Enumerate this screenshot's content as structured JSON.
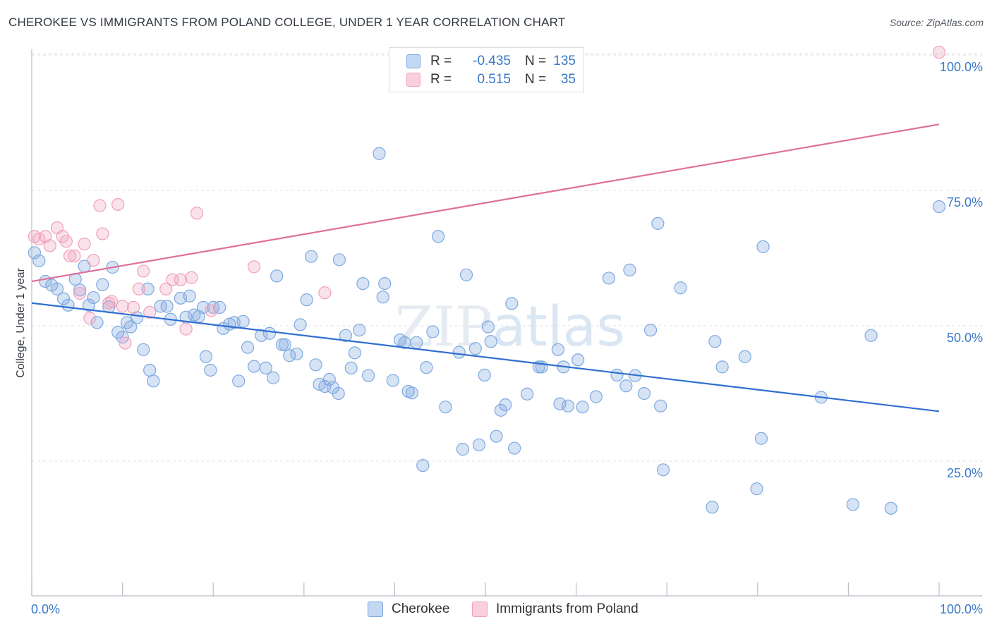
{
  "title": "CHEROKEE VS IMMIGRANTS FROM POLAND COLLEGE, UNDER 1 YEAR CORRELATION CHART",
  "source": "Source: ZipAtlas.com",
  "watermark": "ZIPatlas",
  "legend": {
    "rows": [
      {
        "r_label": "R =",
        "r_value": "-0.435",
        "n_label": "N =",
        "n_value": "135",
        "color": "#7fa9e0"
      },
      {
        "r_label": "R =",
        "r_value": "0.515",
        "n_label": "N =",
        "n_value": "35",
        "color": "#f0a0bc"
      }
    ]
  },
  "bottom_legend": {
    "series1": "Cherokee",
    "series2": "Immigrants from Poland"
  },
  "chart_data": {
    "type": "scatter",
    "title": "CHEROKEE VS IMMIGRANTS FROM POLAND COLLEGE, UNDER 1 YEAR CORRELATION CHART",
    "xlabel": "",
    "ylabel": "College, Under 1 year",
    "xlim": [
      0,
      100
    ],
    "ylim": [
      0,
      103
    ],
    "x_tick_labels": [
      "0.0%",
      "100.0%"
    ],
    "y_tick_labels": [
      "25.0%",
      "50.0%",
      "75.0%",
      "100.0%"
    ],
    "y_ticks": [
      25,
      50,
      75,
      100
    ],
    "grid": true,
    "series": [
      {
        "name": "Cherokee",
        "color": "#7fa9e0",
        "line_color": "#2f6fd0",
        "trend": [
          [
            0,
            54.2
          ],
          [
            100,
            34.2
          ]
        ],
        "points": [
          [
            0.8,
            62.0
          ],
          [
            1.5,
            58.2
          ],
          [
            2.2,
            57.5
          ],
          [
            2.8,
            56.8
          ],
          [
            3.5,
            55.0
          ],
          [
            4.0,
            53.8
          ],
          [
            4.8,
            58.6
          ],
          [
            5.3,
            56.6
          ],
          [
            5.8,
            61.0
          ],
          [
            6.3,
            53.8
          ],
          [
            6.8,
            55.2
          ],
          [
            7.2,
            50.6
          ],
          [
            7.8,
            57.6
          ],
          [
            8.5,
            53.5
          ],
          [
            8.9,
            60.8
          ],
          [
            9.5,
            48.8
          ],
          [
            10.0,
            47.9
          ],
          [
            10.5,
            50.6
          ],
          [
            10.9,
            49.8
          ],
          [
            11.6,
            51.5
          ],
          [
            12.3,
            45.6
          ],
          [
            12.8,
            56.8
          ],
          [
            13.0,
            41.8
          ],
          [
            13.4,
            39.8
          ],
          [
            14.2,
            53.6
          ],
          [
            14.9,
            53.6
          ],
          [
            15.3,
            51.2
          ],
          [
            16.4,
            55.1
          ],
          [
            17.0,
            51.6
          ],
          [
            17.4,
            55.5
          ],
          [
            17.9,
            52.0
          ],
          [
            18.4,
            51.7
          ],
          [
            18.9,
            53.4
          ],
          [
            19.2,
            44.3
          ],
          [
            19.7,
            41.8
          ],
          [
            20.0,
            53.4
          ],
          [
            20.7,
            53.4
          ],
          [
            21.1,
            49.5
          ],
          [
            21.8,
            50.3
          ],
          [
            22.3,
            50.6
          ],
          [
            22.8,
            39.8
          ],
          [
            23.3,
            50.8
          ],
          [
            23.8,
            46.0
          ],
          [
            24.5,
            42.5
          ],
          [
            25.3,
            48.2
          ],
          [
            25.8,
            42.2
          ],
          [
            26.2,
            48.6
          ],
          [
            26.6,
            40.4
          ],
          [
            27.0,
            59.2
          ],
          [
            27.6,
            46.5
          ],
          [
            27.9,
            46.5
          ],
          [
            28.4,
            44.5
          ],
          [
            29.2,
            44.8
          ],
          [
            29.6,
            50.2
          ],
          [
            30.3,
            54.8
          ],
          [
            30.8,
            62.8
          ],
          [
            31.3,
            42.8
          ],
          [
            31.7,
            39.2
          ],
          [
            32.3,
            38.8
          ],
          [
            32.8,
            40.1
          ],
          [
            33.2,
            38.6
          ],
          [
            33.8,
            37.5
          ],
          [
            33.9,
            62.2
          ],
          [
            34.6,
            48.2
          ],
          [
            35.2,
            42.2
          ],
          [
            35.6,
            45.0
          ],
          [
            36.1,
            49.2
          ],
          [
            36.5,
            57.8
          ],
          [
            37.1,
            40.8
          ],
          [
            38.3,
            81.8
          ],
          [
            38.7,
            55.3
          ],
          [
            38.9,
            57.8
          ],
          [
            39.8,
            39.9
          ],
          [
            40.6,
            47.4
          ],
          [
            41.1,
            46.9
          ],
          [
            41.5,
            37.9
          ],
          [
            41.9,
            37.6
          ],
          [
            42.4,
            46.9
          ],
          [
            43.1,
            24.2
          ],
          [
            43.5,
            42.3
          ],
          [
            44.2,
            48.9
          ],
          [
            44.8,
            66.5
          ],
          [
            45.6,
            35.0
          ],
          [
            47.1,
            45.1
          ],
          [
            47.5,
            27.2
          ],
          [
            47.9,
            59.4
          ],
          [
            48.9,
            45.8
          ],
          [
            49.3,
            28.0
          ],
          [
            49.9,
            40.9
          ],
          [
            50.3,
            49.8
          ],
          [
            50.6,
            47.1
          ],
          [
            51.2,
            29.6
          ],
          [
            51.7,
            34.4
          ],
          [
            52.2,
            35.4
          ],
          [
            52.9,
            54.1
          ],
          [
            53.2,
            27.4
          ],
          [
            54.6,
            37.4
          ],
          [
            55.9,
            42.4
          ],
          [
            56.2,
            42.4
          ],
          [
            58.0,
            45.6
          ],
          [
            58.2,
            35.6
          ],
          [
            58.6,
            42.4
          ],
          [
            59.1,
            35.2
          ],
          [
            60.2,
            43.7
          ],
          [
            60.7,
            35.0
          ],
          [
            62.2,
            36.9
          ],
          [
            63.6,
            58.8
          ],
          [
            64.5,
            40.9
          ],
          [
            65.5,
            38.9
          ],
          [
            65.9,
            60.3
          ],
          [
            66.5,
            40.8
          ],
          [
            67.5,
            37.5
          ],
          [
            68.2,
            49.2
          ],
          [
            69.0,
            68.9
          ],
          [
            69.3,
            35.2
          ],
          [
            69.6,
            23.4
          ],
          [
            71.5,
            57.0
          ],
          [
            75.0,
            16.5
          ],
          [
            75.3,
            47.1
          ],
          [
            76.1,
            42.4
          ],
          [
            78.6,
            44.3
          ],
          [
            79.9,
            19.9
          ],
          [
            80.4,
            29.2
          ],
          [
            80.6,
            64.6
          ],
          [
            87.0,
            36.8
          ],
          [
            90.5,
            17.0
          ],
          [
            92.5,
            48.2
          ],
          [
            94.7,
            16.3
          ],
          [
            100.0,
            72.0
          ],
          [
            0.3,
            63.5
          ]
        ]
      },
      {
        "name": "Immigrants from Poland",
        "color": "#f0a0bc",
        "line_color": "#e07098",
        "trend": [
          [
            0,
            58.2
          ],
          [
            100,
            87.2
          ]
        ],
        "points": [
          [
            0.3,
            66.5
          ],
          [
            0.8,
            66.0
          ],
          [
            1.5,
            66.5
          ],
          [
            2.0,
            64.8
          ],
          [
            2.8,
            68.1
          ],
          [
            3.4,
            66.5
          ],
          [
            3.8,
            65.6
          ],
          [
            4.2,
            62.9
          ],
          [
            4.7,
            62.9
          ],
          [
            5.3,
            56.0
          ],
          [
            5.8,
            65.1
          ],
          [
            6.4,
            51.4
          ],
          [
            6.8,
            62.1
          ],
          [
            7.5,
            72.2
          ],
          [
            7.8,
            67.0
          ],
          [
            8.5,
            54.2
          ],
          [
            8.8,
            54.5
          ],
          [
            9.5,
            72.4
          ],
          [
            10.0,
            53.6
          ],
          [
            10.3,
            46.8
          ],
          [
            11.2,
            53.4
          ],
          [
            11.8,
            56.8
          ],
          [
            12.3,
            60.1
          ],
          [
            13.0,
            52.5
          ],
          [
            14.8,
            56.8
          ],
          [
            15.5,
            58.5
          ],
          [
            16.4,
            58.5
          ],
          [
            17.0,
            49.4
          ],
          [
            17.6,
            58.9
          ],
          [
            18.2,
            70.8
          ],
          [
            19.8,
            52.8
          ],
          [
            24.5,
            60.9
          ],
          [
            32.3,
            56.1
          ],
          [
            100.0,
            100.5
          ]
        ]
      }
    ]
  }
}
